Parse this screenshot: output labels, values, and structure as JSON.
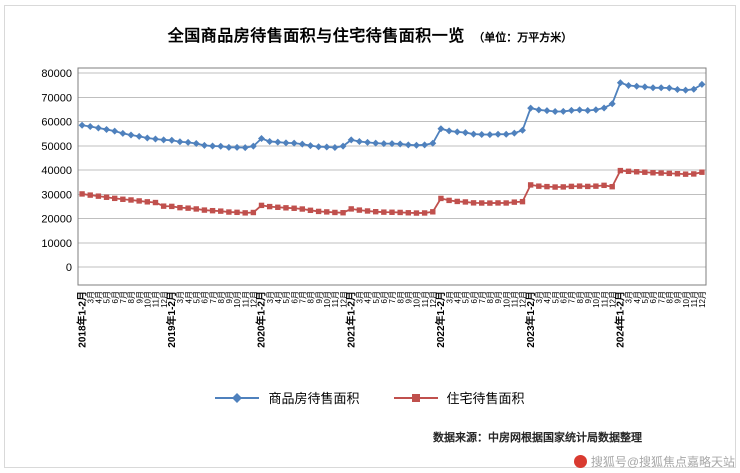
{
  "chart": {
    "title": "全国商品房待售面积与住宅待售面积一览",
    "unit_label": "（单位：万平方米）"
  },
  "chart_data": {
    "type": "line",
    "title": "全国商品房待售面积与住宅待售面积一览（单位：万平方米）",
    "grid": true,
    "legend_position": "bottom",
    "ylim": [
      0,
      80000
    ],
    "yticks": [
      0,
      10000,
      20000,
      30000,
      40000,
      50000,
      60000,
      70000,
      80000
    ],
    "categories": [
      "2018年1-2月",
      "3月",
      "4月",
      "5月",
      "6月",
      "7月",
      "8月",
      "9月",
      "10月",
      "11月",
      "12月",
      "2019年1-2月",
      "3月",
      "4月",
      "5月",
      "6月",
      "7月",
      "8月",
      "9月",
      "10月",
      "11月",
      "12月",
      "2020年1-2月",
      "3月",
      "4月",
      "5月",
      "6月",
      "7月",
      "8月",
      "9月",
      "10月",
      "11月",
      "12月",
      "2021年1-2月",
      "3月",
      "4月",
      "5月",
      "6月",
      "7月",
      "8月",
      "9月",
      "10月",
      "11月",
      "12月",
      "2022年1-2月",
      "3月",
      "4月",
      "5月",
      "6月",
      "7月",
      "8月",
      "9月",
      "10月",
      "11月",
      "12月",
      "2023年1-2月",
      "3月",
      "4月",
      "5月",
      "6月",
      "7月",
      "8月",
      "9月",
      "10月",
      "11月",
      "12月",
      "2024年1-2月",
      "3月",
      "4月",
      "5月",
      "6月",
      "7月",
      "8月",
      "9月",
      "10月",
      "11月",
      "12月"
    ],
    "series": [
      {
        "name": "商品房待售面积",
        "color": "#4f81bd",
        "marker": "diamond",
        "values": [
          58468,
          57920,
          57329,
          56726,
          56010,
          55083,
          54428,
          53873,
          53191,
          52789,
          52414,
          52251,
          51646,
          51380,
          50928,
          50162,
          49876,
          49784,
          49346,
          49323,
          49221,
          49821,
          52987,
          51778,
          51512,
          51184,
          51083,
          50682,
          50052,
          49606,
          49492,
          49287,
          49850,
          52425,
          51753,
          51380,
          51087,
          50867,
          50864,
          50738,
          50385,
          50203,
          50377,
          51023,
          57026,
          56113,
          55735,
          55433,
          54784,
          54655,
          54605,
          54767,
          54734,
          55203,
          56366,
          65528,
          64770,
          64487,
          64120,
          64159,
          64564,
          64795,
          64537,
          64835,
          65585,
          67295,
          75969,
          74833,
          74553,
          74256,
          73894,
          73926,
          73811,
          73177,
          72920,
          73286,
          75327
        ]
      },
      {
        "name": "住宅待售面积",
        "color": "#c0504d",
        "marker": "square",
        "values": [
          30133,
          29650,
          29211,
          28762,
          28309,
          27927,
          27637,
          27244,
          26869,
          26582,
          25091,
          24991,
          24474,
          24266,
          23939,
          23467,
          23229,
          23040,
          22660,
          22542,
          22324,
          22473,
          25410,
          24911,
          24626,
          24403,
          24225,
          23914,
          23376,
          22919,
          22719,
          22494,
          22379,
          23954,
          23467,
          23104,
          22802,
          22622,
          22573,
          22496,
          22364,
          22250,
          22286,
          22761,
          28276,
          27468,
          27039,
          26824,
          26451,
          26391,
          26360,
          26422,
          26399,
          26744,
          26947,
          33852,
          33334,
          33154,
          32977,
          33021,
          33245,
          33346,
          33227,
          33337,
          33672,
          33119,
          39758,
          39458,
          39266,
          39088,
          38863,
          38747,
          38605,
          38462,
          38286,
          38376,
          39088
        ]
      }
    ]
  },
  "footer": {
    "source": "数据来源：中房网根据国家统计局数据整理",
    "watermark": "搜狐号@搜狐焦点嘉略天站"
  }
}
